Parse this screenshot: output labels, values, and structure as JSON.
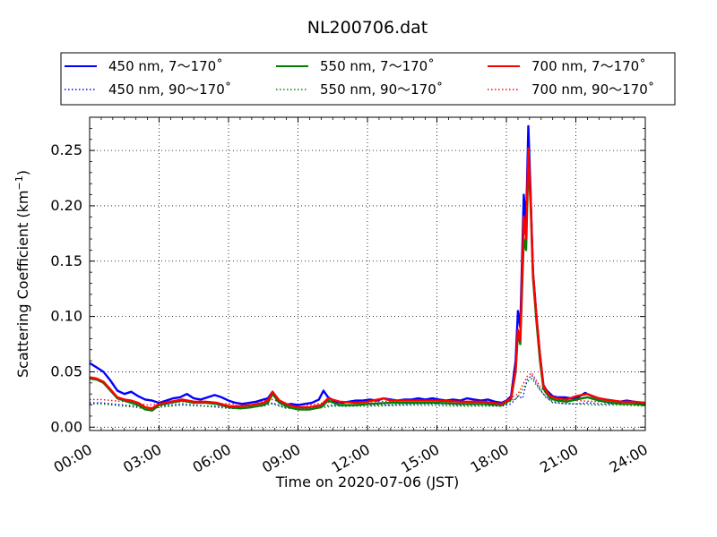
{
  "chart_data": {
    "type": "line",
    "title": "NL200706.dat",
    "xlabel": "Time on 2020-07-06 (JST)",
    "ylabel": "Scattering Coefficient (km",
    "ylabel_sup": "−1",
    "ylabel_close": ")",
    "x_unit": "hours",
    "xlim": [
      0,
      24
    ],
    "ylim": [
      -0.003,
      0.28
    ],
    "grid": true,
    "grid_style": "dotted",
    "legend_position": "top",
    "x_ticks": [
      0,
      3,
      6,
      9,
      12,
      15,
      18,
      21,
      24
    ],
    "x_tick_labels": [
      "00:00",
      "03:00",
      "06:00",
      "09:00",
      "12:00",
      "15:00",
      "18:00",
      "21:00",
      "24:00"
    ],
    "y_ticks": [
      0.0,
      0.05,
      0.1,
      0.15,
      0.2,
      0.25
    ],
    "y_tick_labels": [
      "0.00",
      "0.05",
      "0.10",
      "0.15",
      "0.20",
      "0.25"
    ],
    "series": [
      {
        "name": "450 nm, 7～170˚",
        "color": "#0000ff",
        "style": "solid",
        "x": [
          0,
          0.3,
          0.6,
          0.9,
          1.2,
          1.5,
          1.8,
          2.1,
          2.4,
          2.7,
          3.0,
          3.3,
          3.6,
          3.9,
          4.2,
          4.5,
          4.8,
          5.1,
          5.4,
          5.7,
          6.0,
          6.3,
          6.6,
          6.9,
          7.2,
          7.5,
          7.7,
          7.9,
          8.1,
          8.4,
          8.7,
          9.0,
          9.3,
          9.6,
          9.9,
          10.1,
          10.3,
          10.6,
          10.9,
          11.2,
          11.5,
          11.8,
          12.1,
          12.4,
          12.7,
          13.0,
          13.3,
          13.6,
          13.9,
          14.2,
          14.5,
          14.8,
          15.1,
          15.4,
          15.7,
          16.0,
          16.3,
          16.6,
          16.9,
          17.2,
          17.5,
          17.8,
          18.0,
          18.2,
          18.4,
          18.5,
          18.6,
          18.75,
          18.85,
          18.95,
          19.05,
          19.15,
          19.3,
          19.45,
          19.6,
          19.75,
          19.9,
          20.0,
          20.2,
          20.5,
          20.8,
          21.1,
          21.4,
          21.7,
          22.0,
          22.3,
          22.6,
          22.9,
          23.2,
          23.5,
          23.8,
          24.0
        ],
        "y": [
          0.058,
          0.054,
          0.05,
          0.042,
          0.033,
          0.03,
          0.032,
          0.028,
          0.025,
          0.024,
          0.022,
          0.024,
          0.026,
          0.027,
          0.03,
          0.026,
          0.025,
          0.027,
          0.029,
          0.027,
          0.024,
          0.022,
          0.021,
          0.022,
          0.023,
          0.025,
          0.026,
          0.032,
          0.024,
          0.02,
          0.021,
          0.02,
          0.021,
          0.022,
          0.025,
          0.033,
          0.027,
          0.023,
          0.022,
          0.023,
          0.024,
          0.024,
          0.025,
          0.024,
          0.026,
          0.025,
          0.024,
          0.025,
          0.025,
          0.026,
          0.025,
          0.026,
          0.025,
          0.024,
          0.025,
          0.024,
          0.026,
          0.025,
          0.024,
          0.025,
          0.023,
          0.022,
          0.024,
          0.028,
          0.06,
          0.105,
          0.09,
          0.21,
          0.185,
          0.272,
          0.21,
          0.14,
          0.1,
          0.065,
          0.038,
          0.033,
          0.03,
          0.028,
          0.027,
          0.027,
          0.026,
          0.027,
          0.031,
          0.028,
          0.026,
          0.025,
          0.024,
          0.023,
          0.024,
          0.023,
          0.022,
          0.022
        ]
      },
      {
        "name": "450 nm, 90～170˚",
        "color": "#0000ff",
        "style": "dotted",
        "x": [
          0,
          0.5,
          1.0,
          1.5,
          2.0,
          2.5,
          3.0,
          3.5,
          4.0,
          4.5,
          5.0,
          5.5,
          6.0,
          6.5,
          7.0,
          7.5,
          7.9,
          8.4,
          9.0,
          9.5,
          10.0,
          10.5,
          11.0,
          12.0,
          13.0,
          14.0,
          15.0,
          16.0,
          17.0,
          17.8,
          18.2,
          18.5,
          18.7,
          18.9,
          19.1,
          19.4,
          19.7,
          20.0,
          20.5,
          21.0,
          21.5,
          22.0,
          23.0,
          24.0
        ],
        "y": [
          0.022,
          0.022,
          0.021,
          0.02,
          0.019,
          0.017,
          0.019,
          0.02,
          0.021,
          0.02,
          0.019,
          0.019,
          0.017,
          0.017,
          0.018,
          0.019,
          0.022,
          0.018,
          0.017,
          0.017,
          0.019,
          0.02,
          0.019,
          0.02,
          0.02,
          0.021,
          0.021,
          0.02,
          0.02,
          0.019,
          0.021,
          0.028,
          0.026,
          0.043,
          0.047,
          0.036,
          0.027,
          0.023,
          0.021,
          0.021,
          0.022,
          0.021,
          0.021,
          0.02
        ]
      },
      {
        "name": "550 nm, 7～170˚",
        "color": "#008000",
        "style": "solid",
        "x": [
          0,
          0.3,
          0.6,
          0.9,
          1.2,
          1.5,
          1.8,
          2.1,
          2.4,
          2.7,
          3.0,
          3.5,
          4.0,
          4.5,
          5.0,
          5.5,
          6.0,
          6.5,
          7.0,
          7.5,
          7.7,
          7.9,
          8.2,
          8.6,
          9.0,
          9.5,
          10.0,
          10.3,
          10.8,
          11.5,
          12.0,
          13.0,
          14.0,
          15.0,
          16.0,
          17.0,
          17.8,
          18.2,
          18.4,
          18.5,
          18.6,
          18.75,
          18.85,
          18.95,
          19.05,
          19.15,
          19.3,
          19.45,
          19.6,
          19.75,
          19.9,
          20.2,
          20.6,
          21.0,
          21.5,
          22.0,
          22.5,
          23.0,
          23.5,
          24.0
        ],
        "y": [
          0.044,
          0.043,
          0.04,
          0.033,
          0.026,
          0.024,
          0.022,
          0.02,
          0.016,
          0.015,
          0.02,
          0.022,
          0.024,
          0.022,
          0.022,
          0.021,
          0.018,
          0.017,
          0.018,
          0.02,
          0.022,
          0.03,
          0.022,
          0.018,
          0.016,
          0.016,
          0.018,
          0.024,
          0.02,
          0.02,
          0.021,
          0.022,
          0.022,
          0.022,
          0.021,
          0.021,
          0.02,
          0.025,
          0.05,
          0.085,
          0.075,
          0.17,
          0.16,
          0.24,
          0.2,
          0.135,
          0.095,
          0.06,
          0.035,
          0.03,
          0.026,
          0.024,
          0.023,
          0.025,
          0.027,
          0.024,
          0.022,
          0.021,
          0.021,
          0.02
        ]
      },
      {
        "name": "550 nm, 90～170˚",
        "color": "#008000",
        "style": "dotted",
        "x": [
          0,
          0.5,
          1.0,
          1.5,
          2.0,
          2.5,
          3.0,
          4.0,
          5.0,
          6.0,
          7.0,
          7.9,
          8.5,
          9.5,
          10.5,
          12.0,
          14.0,
          16.0,
          17.8,
          18.5,
          18.9,
          19.1,
          19.5,
          20.0,
          21.0,
          22.0,
          23.0,
          24.0
        ],
        "y": [
          0.021,
          0.021,
          0.02,
          0.019,
          0.018,
          0.016,
          0.018,
          0.02,
          0.019,
          0.017,
          0.018,
          0.021,
          0.017,
          0.016,
          0.019,
          0.019,
          0.02,
          0.019,
          0.019,
          0.027,
          0.041,
          0.044,
          0.032,
          0.022,
          0.021,
          0.02,
          0.02,
          0.019
        ]
      },
      {
        "name": "700 nm, 7～170˚",
        "color": "#ff0000",
        "style": "solid",
        "x": [
          0,
          0.3,
          0.6,
          0.9,
          1.2,
          1.5,
          1.8,
          2.1,
          2.4,
          2.7,
          3.0,
          3.5,
          4.0,
          4.5,
          5.0,
          5.5,
          6.0,
          6.5,
          7.0,
          7.5,
          7.7,
          7.9,
          8.2,
          8.6,
          9.0,
          9.5,
          10.0,
          10.3,
          10.8,
          11.5,
          12.0,
          12.7,
          13.0,
          14.0,
          15.0,
          16.0,
          17.0,
          17.8,
          18.2,
          18.4,
          18.5,
          18.6,
          18.75,
          18.85,
          18.95,
          19.05,
          19.15,
          19.3,
          19.45,
          19.6,
          19.75,
          19.9,
          20.2,
          20.6,
          21.0,
          21.5,
          22.0,
          22.5,
          23.0,
          23.5,
          24.0
        ],
        "y": [
          0.045,
          0.044,
          0.041,
          0.034,
          0.027,
          0.025,
          0.024,
          0.022,
          0.018,
          0.017,
          0.021,
          0.023,
          0.025,
          0.023,
          0.023,
          0.022,
          0.019,
          0.019,
          0.02,
          0.022,
          0.024,
          0.032,
          0.024,
          0.02,
          0.018,
          0.018,
          0.02,
          0.026,
          0.023,
          0.022,
          0.023,
          0.026,
          0.024,
          0.024,
          0.024,
          0.023,
          0.023,
          0.021,
          0.026,
          0.052,
          0.088,
          0.078,
          0.19,
          0.17,
          0.252,
          0.205,
          0.14,
          0.1,
          0.065,
          0.038,
          0.032,
          0.028,
          0.026,
          0.025,
          0.028,
          0.03,
          0.026,
          0.024,
          0.023,
          0.023,
          0.022
        ]
      },
      {
        "name": "700 nm, 90～170˚",
        "color": "#ff0000",
        "style": "dotted",
        "x": [
          0,
          0.5,
          1.0,
          1.5,
          2.0,
          2.5,
          3.0,
          4.0,
          5.0,
          6.0,
          7.0,
          7.9,
          8.5,
          9.5,
          10.5,
          12.0,
          14.0,
          16.0,
          17.8,
          18.5,
          18.9,
          19.1,
          19.5,
          20.0,
          21.0,
          22.0,
          23.0,
          24.0
        ],
        "y": [
          0.025,
          0.025,
          0.024,
          0.023,
          0.022,
          0.02,
          0.021,
          0.023,
          0.022,
          0.021,
          0.022,
          0.025,
          0.021,
          0.02,
          0.023,
          0.023,
          0.024,
          0.023,
          0.022,
          0.03,
          0.046,
          0.049,
          0.035,
          0.025,
          0.024,
          0.023,
          0.023,
          0.022
        ]
      }
    ]
  }
}
